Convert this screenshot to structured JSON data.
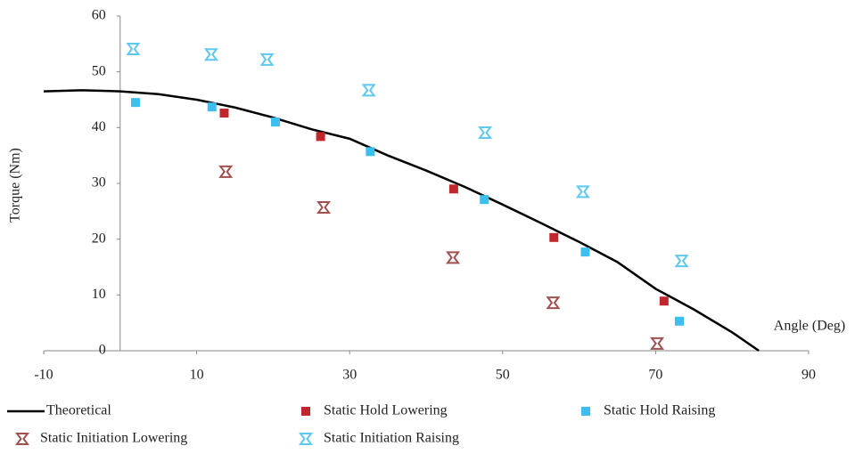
{
  "chart_data": {
    "type": "scatter",
    "x_label": "Angle (Deg)",
    "y_label": "Torque (Nm)",
    "xlim": [
      -10,
      90
    ],
    "xticks": [
      -10,
      10,
      30,
      50,
      70,
      90
    ],
    "ylim": [
      0,
      60
    ],
    "yticks": [
      0,
      10,
      20,
      30,
      40,
      50,
      60
    ],
    "series": [
      {
        "name": "Theoretical",
        "type": "line",
        "color": "#000000",
        "x": [
          -10,
          -5,
          0,
          5,
          10,
          15,
          20,
          25,
          30,
          35,
          40,
          45,
          50,
          55,
          60,
          65,
          70,
          75,
          80,
          83.5
        ],
        "values": [
          46.5,
          46.7,
          46.5,
          46.0,
          45.0,
          43.6,
          41.8,
          39.7,
          38.0,
          35.0,
          32.3,
          29.4,
          26.2,
          22.9,
          19.5,
          15.9,
          11.1,
          7.4,
          3.3,
          0
        ]
      },
      {
        "name": "Static Hold Lowering",
        "marker": "square",
        "color": "#c0272d",
        "x": [
          13.6,
          26.2,
          43.6,
          56.7,
          71.1
        ],
        "values": [
          42.6,
          38.4,
          29.0,
          20.3,
          8.9
        ]
      },
      {
        "name": "Static Hold Raising",
        "marker": "square",
        "color": "#3cbfef",
        "x": [
          2.0,
          12.0,
          20.3,
          32.7,
          47.6,
          60.8,
          73.1
        ],
        "values": [
          44.5,
          43.7,
          41.0,
          35.7,
          27.1,
          17.7,
          5.3
        ]
      },
      {
        "name": "Static Initiation Lowering",
        "marker": "hourglass",
        "color": "#a0504f",
        "x": [
          13.8,
          26.6,
          43.5,
          56.6,
          70.2
        ],
        "values": [
          32.1,
          25.7,
          16.7,
          8.6,
          1.3
        ]
      },
      {
        "name": "Static Initiation Raising",
        "marker": "hourglass",
        "color": "#5ec8ee",
        "x": [
          1.7,
          11.9,
          19.2,
          32.5,
          47.7,
          60.5,
          73.4
        ],
        "values": [
          54.1,
          53.1,
          52.2,
          46.7,
          39.1,
          28.5,
          16.1
        ]
      }
    ]
  }
}
